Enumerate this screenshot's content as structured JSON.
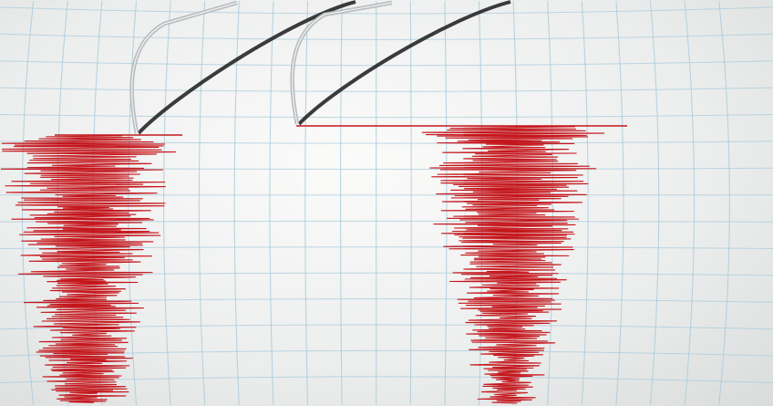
{
  "colors": {
    "paper": "#f4f5f4",
    "grid": "#a9cbdc",
    "trace": "#c4161c",
    "needle": "#b9bcbe",
    "needle_shadow": "#1a1a1a"
  }
}
